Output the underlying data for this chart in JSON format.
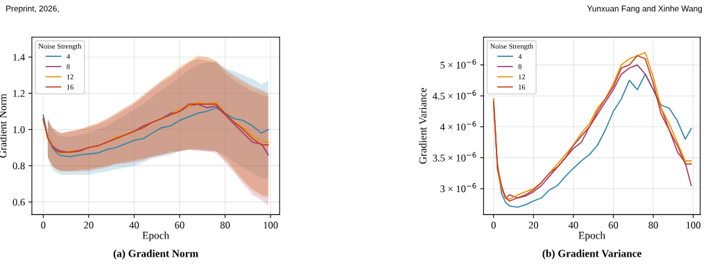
{
  "chart_data": [
    {
      "type": "line",
      "xlabel": "Epoch",
      "ylabel": "Gradient Norm",
      "legend_title": "Noise Strength",
      "legend": "top left",
      "grid": true,
      "annotations": [
        "Preprint, 2026,",
        "(a) Gradient Norm"
      ],
      "xlim": [
        -5,
        104
      ],
      "xticks": [
        0,
        20,
        40,
        60,
        80,
        100
      ],
      "ylim": [
        0.53,
        1.51
      ],
      "yticks": [
        0.6,
        0.8,
        {
          "value": 1.0,
          "label": "1.0"
        },
        1.2,
        1.4
      ],
      "x": [
        0,
        2,
        4,
        6,
        8,
        12,
        16,
        20,
        24,
        28,
        32,
        36,
        40,
        44,
        48,
        52,
        56,
        60,
        64,
        68,
        72,
        76,
        80,
        84,
        88,
        92,
        96,
        99
      ],
      "series": [
        {
          "name": "4",
          "color": "#2e86ab",
          "values": [
            1.08,
            0.96,
            0.9,
            0.87,
            0.855,
            0.85,
            0.86,
            0.865,
            0.87,
            0.89,
            0.9,
            0.92,
            0.94,
            0.95,
            0.98,
            1.01,
            1.02,
            1.05,
            1.07,
            1.09,
            1.1,
            1.12,
            1.09,
            1.06,
            1.05,
            1.02,
            0.98,
            1.0
          ],
          "upper": [
            null,
            1.06,
            1.0,
            0.97,
            0.96,
            0.96,
            0.97,
            0.98,
            1.0,
            1.02,
            1.05,
            1.08,
            1.11,
            1.14,
            1.18,
            1.22,
            1.25,
            1.29,
            1.33,
            1.36,
            1.37,
            1.37,
            1.34,
            1.32,
            1.3,
            1.28,
            1.25,
            1.27
          ],
          "lower": [
            null,
            0.84,
            0.78,
            0.76,
            0.75,
            0.75,
            0.75,
            0.75,
            0.76,
            0.77,
            0.78,
            0.79,
            0.8,
            0.82,
            0.84,
            0.85,
            0.86,
            0.88,
            0.89,
            0.89,
            0.88,
            0.88,
            0.86,
            0.82,
            0.79,
            0.76,
            0.73,
            0.73
          ]
        },
        {
          "name": "8",
          "color": "#a23b72",
          "values": [
            1.06,
            0.96,
            0.91,
            0.89,
            0.88,
            0.875,
            0.88,
            0.9,
            0.91,
            0.93,
            0.95,
            0.97,
            0.99,
            1.02,
            1.04,
            1.06,
            1.09,
            1.1,
            1.13,
            1.14,
            1.12,
            1.13,
            1.08,
            1.03,
            0.98,
            0.93,
            0.92,
            0.86
          ],
          "upper": [
            null,
            1.06,
            1.01,
            0.99,
            0.98,
            0.99,
            1.0,
            1.02,
            1.03,
            1.06,
            1.09,
            1.12,
            1.15,
            1.19,
            1.23,
            1.27,
            1.3,
            1.34,
            1.37,
            1.39,
            1.38,
            1.37,
            1.31,
            1.27,
            1.24,
            1.21,
            1.19,
            1.18
          ],
          "lower": [
            null,
            0.85,
            0.8,
            0.78,
            0.77,
            0.77,
            0.78,
            0.78,
            0.79,
            0.8,
            0.81,
            0.82,
            0.83,
            0.84,
            0.85,
            0.86,
            0.88,
            0.88,
            0.89,
            0.88,
            0.88,
            0.87,
            0.82,
            0.76,
            0.7,
            0.64,
            0.61,
            0.58
          ]
        },
        {
          "name": "12",
          "color": "#f18f01",
          "values": [
            1.05,
            0.96,
            0.91,
            0.88,
            0.87,
            0.88,
            0.885,
            0.9,
            0.91,
            0.93,
            0.96,
            0.97,
            0.99,
            1.01,
            1.04,
            1.06,
            1.08,
            1.11,
            1.13,
            1.15,
            1.14,
            1.15,
            1.09,
            1.04,
            1.01,
            0.965,
            0.935,
            0.93
          ],
          "upper": [
            null,
            1.05,
            1.01,
            0.99,
            0.98,
            0.99,
            1.0,
            1.02,
            1.04,
            1.06,
            1.09,
            1.12,
            1.15,
            1.19,
            1.23,
            1.27,
            1.31,
            1.35,
            1.38,
            1.41,
            1.4,
            1.38,
            1.33,
            1.29,
            1.26,
            1.23,
            1.21,
            1.19
          ],
          "lower": [
            null,
            0.85,
            0.8,
            0.78,
            0.77,
            0.77,
            0.77,
            0.78,
            0.79,
            0.8,
            0.81,
            0.82,
            0.83,
            0.84,
            0.85,
            0.86,
            0.87,
            0.88,
            0.89,
            0.89,
            0.88,
            0.88,
            0.83,
            0.77,
            0.71,
            0.66,
            0.63,
            0.62
          ]
        },
        {
          "name": "16",
          "color": "#c73e1d",
          "values": [
            1.06,
            0.95,
            0.91,
            0.88,
            0.875,
            0.875,
            0.885,
            0.9,
            0.91,
            0.93,
            0.95,
            0.97,
            0.99,
            1.01,
            1.04,
            1.06,
            1.08,
            1.1,
            1.14,
            1.14,
            1.14,
            1.14,
            1.09,
            1.04,
            1.0,
            0.95,
            0.915,
            0.915
          ],
          "upper": [
            null,
            1.05,
            1.01,
            0.99,
            0.98,
            0.99,
            1.0,
            1.01,
            1.03,
            1.05,
            1.08,
            1.11,
            1.14,
            1.18,
            1.22,
            1.26,
            1.29,
            1.33,
            1.37,
            1.4,
            1.4,
            1.38,
            1.33,
            1.3,
            1.27,
            1.24,
            1.22,
            1.2
          ],
          "lower": [
            null,
            0.85,
            0.8,
            0.78,
            0.77,
            0.77,
            0.77,
            0.77,
            0.78,
            0.79,
            0.81,
            0.81,
            0.82,
            0.83,
            0.85,
            0.86,
            0.87,
            0.88,
            0.89,
            0.89,
            0.89,
            0.88,
            0.84,
            0.78,
            0.72,
            0.67,
            0.64,
            0.63
          ]
        }
      ]
    },
    {
      "type": "line",
      "xlabel": "Epoch",
      "ylabel": "Gradient Variance",
      "legend_title": "Noise Strength",
      "legend": "top left",
      "grid": true,
      "annotations": [
        "Yunxuan Fang and Xinhe Wang",
        "(b) Gradient Variance"
      ],
      "xlim": [
        -5,
        103.5
      ],
      "xticks": [
        0,
        20,
        40,
        60,
        80,
        100
      ],
      "ylim": [
        2.58e-06,
        5.45e-06
      ],
      "yticks": [
        {
          "value": 3e-06,
          "label": "3 × 10$^{−6}$"
        },
        {
          "value": 3.5e-06,
          "label": "3.5 × 10$^{−6}$"
        },
        {
          "value": 4e-06,
          "label": "4 × 10$^{−6}$"
        },
        {
          "value": 4.5e-06,
          "label": "4.5 × 10$^{−6}$"
        },
        {
          "value": 5e-06,
          "label": "5 × 10$^{−6}$"
        }
      ],
      "x": [
        0,
        2,
        4,
        6,
        8,
        12,
        16,
        20,
        24,
        28,
        32,
        36,
        40,
        44,
        48,
        52,
        56,
        60,
        64,
        68,
        72,
        76,
        80,
        84,
        88,
        92,
        96,
        99
      ],
      "series": [
        {
          "name": "4",
          "color": "#2e86ab",
          "values": [
            null,
            3.4e-06,
            2.92e-06,
            2.78e-06,
            2.72e-06,
            2.7e-06,
            2.74e-06,
            2.8e-06,
            2.85e-06,
            2.98e-06,
            3.05e-06,
            3.2e-06,
            3.33e-06,
            3.45e-06,
            3.55e-06,
            3.7e-06,
            3.95e-06,
            4.25e-06,
            4.45e-06,
            4.75e-06,
            4.6e-06,
            4.85e-06,
            4.6e-06,
            4.35e-06,
            4.3e-06,
            4.1e-06,
            3.8e-06,
            3.97e-06
          ]
        },
        {
          "name": "8",
          "color": "#a23b72",
          "values": [
            4.45e-06,
            3.3e-06,
            3e-06,
            2.85e-06,
            2.9e-06,
            2.85e-06,
            2.88e-06,
            2.95e-06,
            3.05e-06,
            3.2e-06,
            3.35e-06,
            3.5e-06,
            3.65e-06,
            3.75e-06,
            4e-06,
            4.2e-06,
            4.4e-06,
            4.6e-06,
            4.85e-06,
            4.95e-06,
            5e-06,
            4.85e-06,
            4.6e-06,
            4.3e-06,
            3.95e-06,
            3.6e-06,
            3.42e-06,
            3.05e-06
          ]
        },
        {
          "name": "12",
          "color": "#f18f01",
          "values": [
            4.45e-06,
            3.3e-06,
            3e-06,
            2.87e-06,
            2.83e-06,
            2.9e-06,
            2.95e-06,
            3e-06,
            3.1e-06,
            3.25e-06,
            3.4e-06,
            3.55e-06,
            3.7e-06,
            3.9e-06,
            4.05e-06,
            4.3e-06,
            4.45e-06,
            4.7e-06,
            5e-06,
            5.1e-06,
            5.15e-06,
            5.2e-06,
            4.8e-06,
            4.3e-06,
            4.05e-06,
            3.75e-06,
            3.45e-06,
            3.45e-06
          ]
        },
        {
          "name": "16",
          "color": "#c73e1d",
          "values": [
            4.4e-06,
            3.35e-06,
            3.05e-06,
            2.85e-06,
            2.8e-06,
            2.85e-06,
            2.9e-06,
            2.98e-06,
            3.1e-06,
            3.25e-06,
            3.35e-06,
            3.5e-06,
            3.7e-06,
            3.85e-06,
            4e-06,
            4.25e-06,
            4.45e-06,
            4.65e-06,
            4.95e-06,
            5e-06,
            5.15e-06,
            5.1e-06,
            4.7e-06,
            4.2e-06,
            3.95e-06,
            3.7e-06,
            3.4e-06,
            3.4e-06
          ]
        }
      ]
    }
  ]
}
